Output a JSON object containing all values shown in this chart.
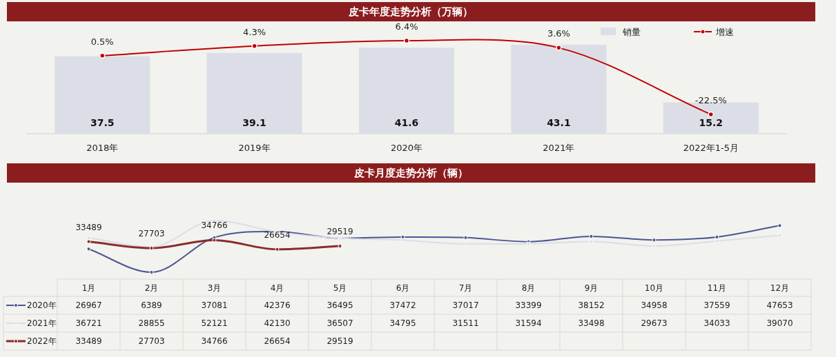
{
  "chart_data": [
    {
      "type": "bar",
      "title": "皮卡年度走势分析（万辆）",
      "categories": [
        "2018年",
        "2019年",
        "2020年",
        "2021年",
        "2022年1-5月"
      ],
      "legend": "top right",
      "series": [
        {
          "name": "销量",
          "type": "bar",
          "color": "#dcdee7",
          "values": [
            37.5,
            39.1,
            41.6,
            43.1,
            15.2
          ],
          "value_labels": [
            "37.5",
            "39.1",
            "41.6",
            "43.1",
            "15.2"
          ]
        },
        {
          "name": "增速",
          "type": "line",
          "axis": "y2",
          "color": "#c00000",
          "marker": "circle",
          "values": [
            0.5,
            4.3,
            6.4,
            3.6,
            -22.5
          ],
          "value_labels": [
            "0.5%",
            "4.3%",
            "6.4%",
            "3.6%",
            "-22.5%"
          ]
        }
      ]
    },
    {
      "type": "line",
      "title": "皮卡月度走势分析（辆）",
      "categories": [
        "1月",
        "2月",
        "3月",
        "4月",
        "5月",
        "6月",
        "7月",
        "8月",
        "9月",
        "10月",
        "11月",
        "12月"
      ],
      "data_labels": true,
      "marker": "circle",
      "legend": "bottom left",
      "annotations": [
        {
          "text": "33489",
          "x": "1月",
          "y": 33489
        },
        {
          "text": "27703",
          "x": "2月",
          "y": 27703
        },
        {
          "text": "34766",
          "x": "3月",
          "y": 34766
        },
        {
          "text": "26654",
          "x": "4月",
          "y": 26654
        },
        {
          "text": "29519",
          "x": "5月",
          "y": 29519
        }
      ],
      "series": [
        {
          "name": "2020年",
          "color": "#4b5590",
          "values": [
            26967,
            6389,
            37081,
            42376,
            36495,
            37472,
            37017,
            33399,
            38152,
            34958,
            37559,
            47653
          ]
        },
        {
          "name": "2021年",
          "color": "#dcdde7",
          "values": [
            36721,
            28855,
            52121,
            42130,
            36507,
            34795,
            31511,
            31594,
            33498,
            29673,
            34033,
            39070
          ]
        },
        {
          "name": "2022年",
          "color": "#8b2b2b",
          "values": [
            33489,
            27703,
            34766,
            26654,
            29519,
            null,
            null,
            null,
            null,
            null,
            null,
            null
          ]
        }
      ]
    }
  ]
}
